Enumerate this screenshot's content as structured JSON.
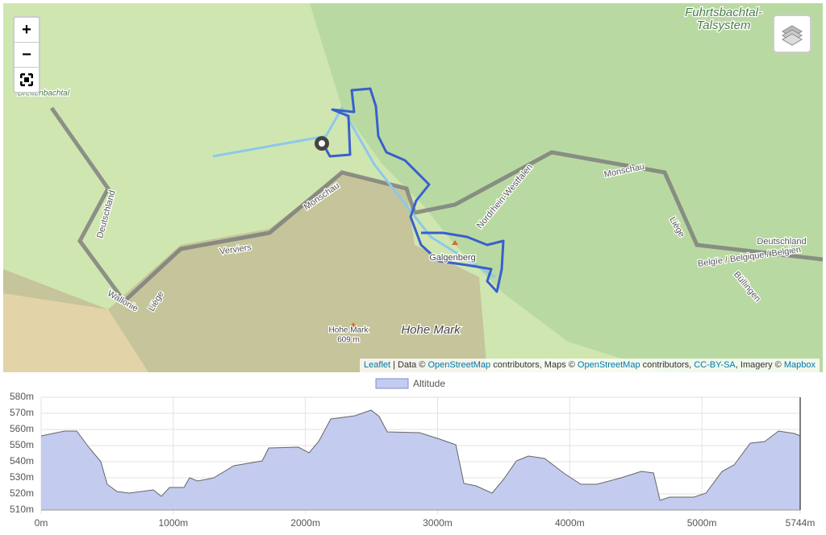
{
  "map": {
    "controls": {
      "zoom_in": "+",
      "zoom_out": "−"
    },
    "labels": [
      "Fuhrtsbachtal-",
      "Talsystem",
      "Breitenbachtal",
      "Deutschland",
      "Monschau",
      "Monschau",
      "Verviers",
      "Wallonie",
      "Liège",
      "Liège",
      "Galgenberg",
      "Hohe Mark",
      "609 m",
      "Hohe Mark",
      "Nordrhein-Westfalen",
      "Belgïe / Belgique / Belgien",
      "Deutschland",
      "Büllingen"
    ],
    "attribution": [
      "Leaflet",
      " | Data © ",
      "OpenStreetMap",
      " contributors, Maps © ",
      "OpenStreetMap",
      " contributors, ",
      "CC-BY-SA",
      ", Imagery © ",
      "Mapbox"
    ]
  },
  "chart_data": {
    "type": "area",
    "x": [
      0,
      177,
      269,
      360,
      452,
      500,
      574,
      665,
      849,
      910,
      971,
      1081,
      1123,
      1184,
      1306,
      1459,
      1673,
      1722,
      1948,
      2027,
      2100,
      2192,
      2375,
      2497,
      2558,
      2619,
      2863,
      3016,
      3138,
      3199,
      3291,
      3413,
      3504,
      3596,
      3687,
      3810,
      3962,
      4084,
      4206,
      4389,
      4542,
      4634,
      4683,
      4756,
      4939,
      5031,
      5153,
      5244,
      5366,
      5476,
      5580,
      5702,
      5744
    ],
    "series": [
      {
        "name": "Altitude",
        "color": "#c3cbef",
        "values": [
          556,
          559,
          559,
          549,
          540,
          526,
          521.5,
          520.5,
          522.5,
          518.5,
          524,
          524,
          530,
          528,
          530,
          537.5,
          540.5,
          548.5,
          549,
          545.5,
          552.5,
          566.5,
          568.5,
          572,
          568,
          558.5,
          558,
          554,
          550.5,
          526.5,
          525,
          520.5,
          529.5,
          540.5,
          543.5,
          542,
          532.5,
          526,
          526,
          530,
          534,
          533,
          516,
          518,
          518,
          520.5,
          534,
          538,
          551.5,
          552.5,
          559,
          557.5,
          556
        ]
      }
    ],
    "xlim": [
      0,
      5744
    ],
    "xticks": [
      {
        "value": 0,
        "label": "0m"
      },
      {
        "value": 1000,
        "label": "1000m"
      },
      {
        "value": 2000,
        "label": "2000m"
      },
      {
        "value": 3000,
        "label": "3000m"
      },
      {
        "value": 4000,
        "label": "4000m"
      },
      {
        "value": 5000,
        "label": "5000m"
      },
      {
        "value": 5744,
        "label": "5744m"
      }
    ],
    "ylim": [
      510,
      580
    ],
    "yticks": [
      {
        "value": 510,
        "label": "510m"
      },
      {
        "value": 520,
        "label": "520m"
      },
      {
        "value": 530,
        "label": "530m"
      },
      {
        "value": 540,
        "label": "540m"
      },
      {
        "value": 550,
        "label": "550m"
      },
      {
        "value": 560,
        "label": "560m"
      },
      {
        "value": 570,
        "label": "570m"
      },
      {
        "value": 580,
        "label": "580m"
      }
    ],
    "grid": true,
    "legend": "top"
  }
}
